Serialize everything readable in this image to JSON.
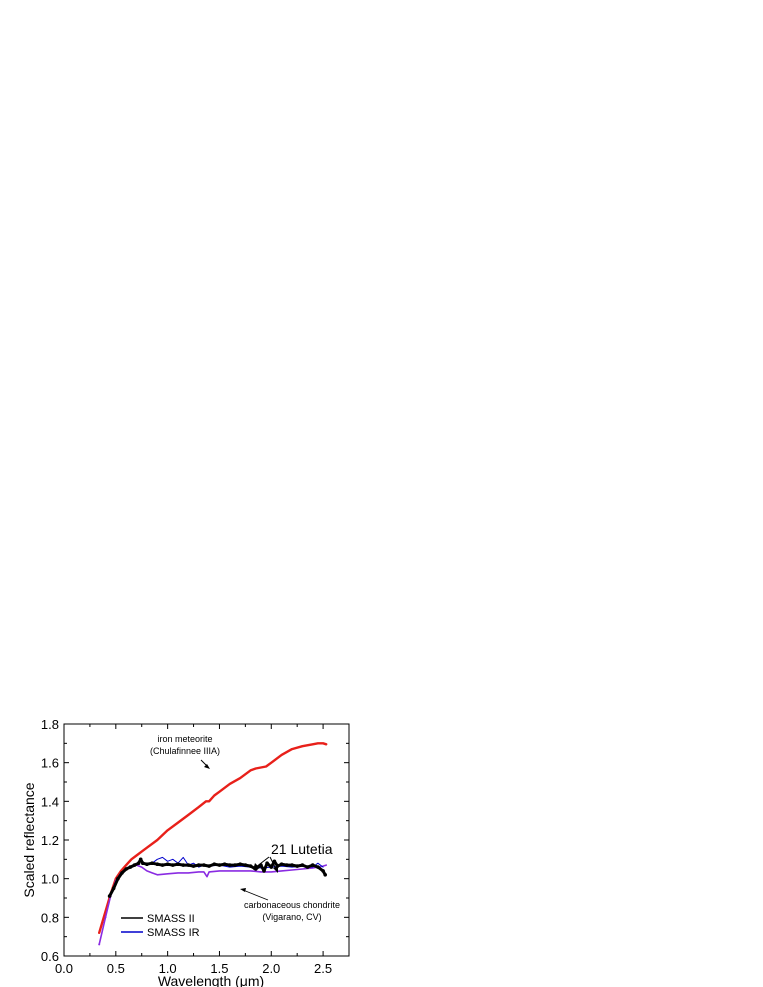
{
  "chart_data": {
    "type": "line",
    "xlabel": "Wavelength (μm)",
    "ylabel": "Scaled reflectance",
    "xlim": [
      0.0,
      2.75
    ],
    "ylim": [
      0.6,
      1.8
    ],
    "x_ticks": [
      "0.0",
      "0.5",
      "1.0",
      "1.5",
      "2.0",
      "2.5"
    ],
    "y_ticks": [
      "0.6",
      "0.8",
      "1.0",
      "1.2",
      "1.4",
      "1.6",
      "1.8"
    ],
    "legend": {
      "position": "bottom-left",
      "entries": [
        {
          "label": "SMASS II",
          "color": "#000000"
        },
        {
          "label": "SMASS IR",
          "color": "#0000cc"
        }
      ]
    },
    "annotations": {
      "iron_line1": "iron meteorite",
      "iron_line2": "(Chulafinnee IIIA)",
      "lutetia": "21 Lutetia",
      "cc_line1": "carbonaceous chondrite",
      "cc_line2": "(Vigarano, CV)"
    },
    "series": [
      {
        "id": "iron",
        "color": "#e8201a",
        "x": [
          0.34,
          0.4,
          0.45,
          0.5,
          0.55,
          0.6,
          0.65,
          0.7,
          0.75,
          0.8,
          0.9,
          1.0,
          1.1,
          1.2,
          1.3,
          1.37,
          1.4,
          1.45,
          1.5,
          1.6,
          1.7,
          1.8,
          1.85,
          1.9,
          1.95,
          2.0,
          2.1,
          2.2,
          2.3,
          2.4,
          2.45,
          2.5,
          2.53
        ],
        "y": [
          0.72,
          0.83,
          0.92,
          1.0,
          1.04,
          1.07,
          1.1,
          1.12,
          1.14,
          1.16,
          1.2,
          1.25,
          1.29,
          1.33,
          1.37,
          1.4,
          1.4,
          1.43,
          1.45,
          1.49,
          1.52,
          1.56,
          1.57,
          1.575,
          1.58,
          1.6,
          1.64,
          1.67,
          1.685,
          1.695,
          1.7,
          1.7,
          1.695
        ]
      },
      {
        "id": "carbonaceous_chondrite",
        "color": "#8a2be2",
        "x": [
          0.34,
          0.4,
          0.45,
          0.5,
          0.55,
          0.6,
          0.65,
          0.7,
          0.75,
          0.8,
          0.85,
          0.9,
          1.0,
          1.1,
          1.2,
          1.3,
          1.35,
          1.38,
          1.4,
          1.5,
          1.6,
          1.7,
          1.8,
          1.9,
          2.0,
          2.1,
          2.2,
          2.3,
          2.4,
          2.5,
          2.53
        ],
        "y": [
          0.66,
          0.8,
          0.91,
          0.99,
          1.03,
          1.05,
          1.06,
          1.07,
          1.06,
          1.04,
          1.03,
          1.02,
          1.025,
          1.03,
          1.03,
          1.035,
          1.035,
          1.01,
          1.035,
          1.04,
          1.04,
          1.04,
          1.04,
          1.035,
          1.035,
          1.04,
          1.045,
          1.05,
          1.055,
          1.065,
          1.07
        ]
      },
      {
        "id": "smass_ir",
        "name": "SMASS IR",
        "color": "#0000cc",
        "x": [
          0.85,
          0.9,
          0.95,
          1.0,
          1.05,
          1.1,
          1.15,
          1.2,
          1.25,
          1.3,
          1.35,
          1.4,
          1.5,
          1.6,
          1.7,
          1.8,
          1.9,
          2.0,
          2.1,
          2.2,
          2.3,
          2.4,
          2.45,
          2.5
        ],
        "y": [
          1.08,
          1.1,
          1.11,
          1.09,
          1.1,
          1.08,
          1.11,
          1.07,
          1.08,
          1.06,
          1.07,
          1.065,
          1.07,
          1.06,
          1.065,
          1.06,
          1.055,
          1.06,
          1.065,
          1.06,
          1.065,
          1.06,
          1.08,
          1.06
        ]
      },
      {
        "id": "smass_ii",
        "name": "SMASS II",
        "color": "#000000",
        "x": [
          0.44,
          0.48,
          0.52,
          0.56,
          0.6,
          0.64,
          0.68,
          0.72,
          0.74,
          0.76,
          0.8,
          0.85,
          0.9,
          0.95,
          1.0,
          1.05,
          1.1,
          1.15,
          1.2,
          1.25,
          1.3,
          1.35,
          1.4,
          1.45,
          1.5,
          1.55,
          1.6,
          1.65,
          1.7,
          1.75,
          1.8,
          1.85,
          1.9,
          1.93,
          1.96,
          2.0,
          2.03,
          2.06,
          2.1,
          2.15,
          2.2,
          2.25,
          2.3,
          2.35,
          2.4,
          2.45,
          2.5,
          2.52
        ],
        "y": [
          0.91,
          0.95,
          1.0,
          1.03,
          1.05,
          1.06,
          1.07,
          1.08,
          1.1,
          1.08,
          1.075,
          1.08,
          1.075,
          1.07,
          1.075,
          1.07,
          1.075,
          1.07,
          1.07,
          1.065,
          1.07,
          1.07,
          1.065,
          1.075,
          1.07,
          1.075,
          1.07,
          1.07,
          1.075,
          1.07,
          1.065,
          1.05,
          1.07,
          1.04,
          1.08,
          1.06,
          1.09,
          1.065,
          1.075,
          1.07,
          1.07,
          1.065,
          1.07,
          1.06,
          1.07,
          1.06,
          1.04,
          1.02
        ]
      }
    ]
  }
}
